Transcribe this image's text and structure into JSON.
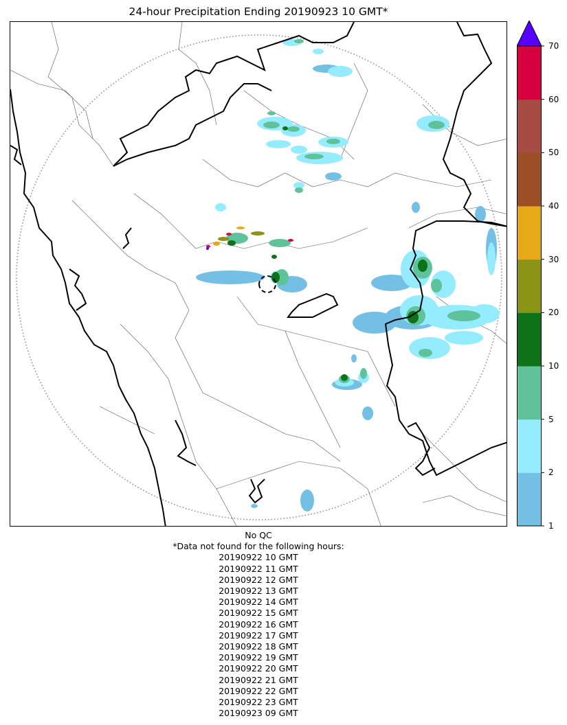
{
  "title": "24-hour Precipitation Ending 20190923 10 GMT*",
  "colorbar": {
    "ticks": [
      "1",
      "2",
      "5",
      "10",
      "20",
      "30",
      "40",
      "50",
      "60",
      "70"
    ],
    "colors": [
      "#74c0e4",
      "#96ecff",
      "#5ec39a",
      "#0e7318",
      "#8c9416",
      "#e6aa19",
      "#9c4f27",
      "#a54b41",
      "#d6003f"
    ],
    "extend_color": "#5500ff"
  },
  "legend_levels": [
    {
      "min": 1,
      "max": 2,
      "color": "#74c0e4"
    },
    {
      "min": 2,
      "max": 5,
      "color": "#96ecff"
    },
    {
      "min": 5,
      "max": 10,
      "color": "#5ec39a"
    },
    {
      "min": 10,
      "max": 20,
      "color": "#0e7318"
    },
    {
      "min": 20,
      "max": 30,
      "color": "#8c9416"
    },
    {
      "min": 30,
      "max": 40,
      "color": "#e6aa19"
    },
    {
      "min": 40,
      "max": 50,
      "color": "#9c4f27"
    },
    {
      "min": 50,
      "max": 60,
      "color": "#a54b41"
    },
    {
      "min": 60,
      "max": 70,
      "color": "#d6003f"
    },
    {
      "min": 70,
      "max": null,
      "color": "#5500ff"
    }
  ],
  "footer": {
    "qc_note": "No QC",
    "missing_header": "*Data not found for the following hours:",
    "missing_hours": [
      "20190922 10 GMT",
      "20190922 11 GMT",
      "20190922 12 GMT",
      "20190922 13 GMT",
      "20190922 14 GMT",
      "20190922 15 GMT",
      "20190922 16 GMT",
      "20190922 17 GMT",
      "20190922 18 GMT",
      "20190922 19 GMT",
      "20190922 20 GMT",
      "20190922 21 GMT",
      "20190922 22 GMT",
      "20190922 23 GMT",
      "20190923 09 GMT"
    ]
  }
}
